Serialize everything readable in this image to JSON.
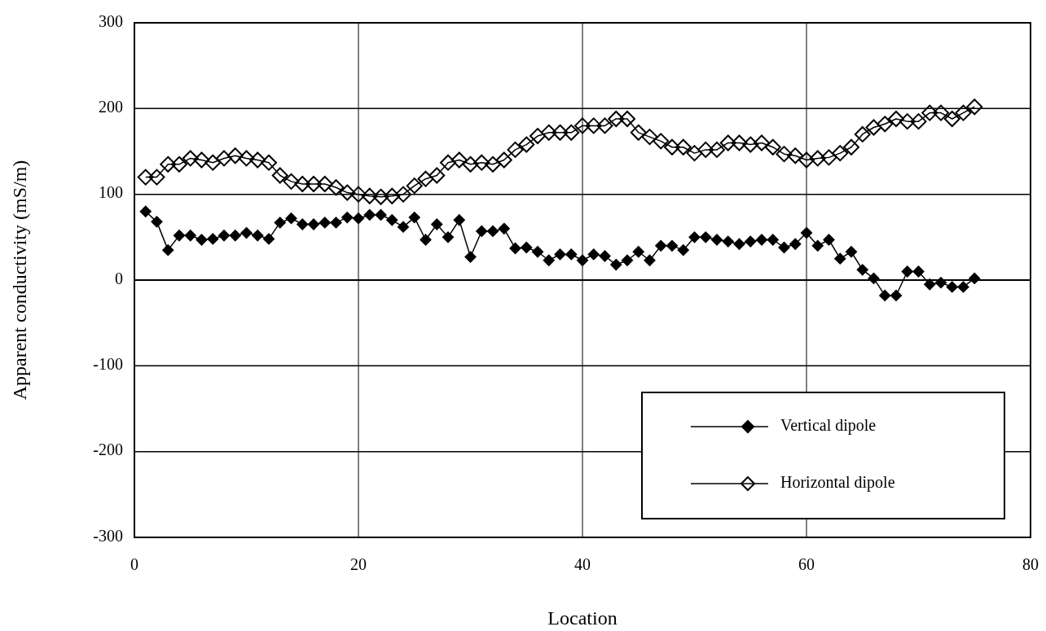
{
  "chart_data": {
    "type": "line",
    "xlabel": "Location",
    "ylabel": "Apparent conductivity (mS/m)",
    "x": [
      1,
      2,
      3,
      4,
      5,
      6,
      7,
      8,
      9,
      10,
      11,
      12,
      13,
      14,
      15,
      16,
      17,
      18,
      19,
      20,
      21,
      22,
      23,
      24,
      25,
      26,
      27,
      28,
      29,
      30,
      31,
      32,
      33,
      34,
      35,
      36,
      37,
      38,
      39,
      40,
      41,
      42,
      43,
      44,
      45,
      46,
      47,
      48,
      49,
      50,
      51,
      52,
      53,
      54,
      55,
      56,
      57,
      58,
      59,
      60,
      61,
      62,
      63,
      64,
      65,
      66,
      67,
      68,
      69,
      70,
      71,
      72,
      73,
      74,
      75
    ],
    "series": [
      {
        "name": "Vertical dipole",
        "color": "#000000",
        "values": [
          80,
          68,
          35,
          52,
          52,
          47,
          48,
          52,
          52,
          55,
          52,
          48,
          67,
          72,
          65,
          65,
          67,
          67,
          73,
          72,
          76,
          76,
          70,
          62,
          73,
          47,
          65,
          50,
          70,
          27,
          57,
          57,
          60,
          37,
          38,
          33,
          23,
          30,
          30,
          23,
          30,
          28,
          18,
          23,
          33,
          23,
          40,
          40,
          35,
          50,
          50,
          47,
          45,
          42,
          45,
          47,
          47,
          38,
          42,
          55,
          40,
          47,
          25,
          33,
          12,
          2,
          -18,
          -18,
          10,
          10,
          -5,
          -3,
          -8,
          -8,
          2
        ]
      },
      {
        "name": "Horizontal dipole",
        "color": "#000000",
        "values": [
          120,
          120,
          135,
          135,
          142,
          140,
          137,
          142,
          145,
          142,
          140,
          137,
          122,
          115,
          112,
          112,
          112,
          108,
          102,
          100,
          98,
          97,
          98,
          100,
          110,
          118,
          122,
          137,
          140,
          135,
          137,
          135,
          140,
          152,
          158,
          168,
          172,
          172,
          172,
          180,
          180,
          180,
          188,
          188,
          172,
          167,
          162,
          155,
          155,
          148,
          152,
          152,
          160,
          160,
          158,
          160,
          155,
          147,
          145,
          140,
          142,
          143,
          148,
          155,
          170,
          178,
          182,
          188,
          185,
          185,
          195,
          195,
          188,
          195,
          202
        ]
      }
    ],
    "xlim": [
      0,
      80
    ],
    "xticks": [
      0,
      20,
      40,
      60,
      80
    ],
    "ylim": [
      -300,
      300
    ],
    "yticks": [
      -300,
      -200,
      -100,
      0,
      100,
      200,
      300
    ],
    "grid": true,
    "legend": "bottom right",
    "marker": "diamond",
    "line_style": "solid"
  }
}
